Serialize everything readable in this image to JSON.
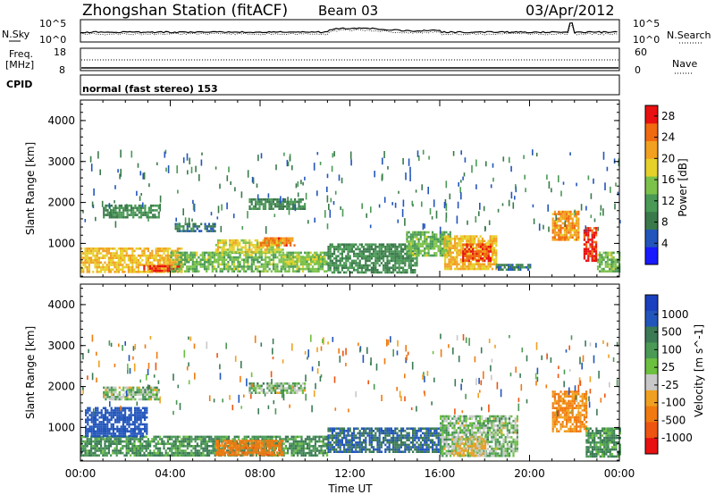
{
  "header": {
    "title": "Zhongshan Station (fitACF)",
    "beam": "Beam 03",
    "date": "03/Apr/2012"
  },
  "top_panel": {
    "nsky_label": "N.Sky",
    "nsearch_label": "N.Search",
    "nsky_ticks": [
      "10^5",
      "10^0"
    ],
    "nsearch_ticks": [
      "10^5",
      "10^0"
    ],
    "freq_label_1": "Freq.",
    "freq_label_2": "[MHz]",
    "freq_ticks": [
      "18",
      "8"
    ],
    "nave_label": "Nave",
    "nave_ticks": [
      "60",
      "0"
    ],
    "cpid_label": "CPID",
    "cpid_text": "normal (fast stereo) 153"
  },
  "colors": {
    "power_scale": [
      "#1a1aff",
      "#2255bb",
      "#3a7a4a",
      "#4a9a55",
      "#7cc24a",
      "#e6d02a",
      "#f2a020",
      "#f06a10",
      "#e81010"
    ],
    "velocity_scale": [
      "#1a3fbf",
      "#2255bb",
      "#3b7a55",
      "#4a9a55",
      "#6cc040",
      "#c8c8c8",
      "#f0a020",
      "#f07a10",
      "#ee5510",
      "#e81010"
    ]
  },
  "chart_data": [
    {
      "type": "heatmap",
      "name": "power",
      "xlabel": "Time UT",
      "ylabel": "Slant Range [km]",
      "colorbar_label": "Power [dB]",
      "x_ticks": [
        "00:00",
        "04:00",
        "08:00",
        "12:00",
        "16:00",
        "20:00",
        "00:00"
      ],
      "xlim_hours": [
        0,
        24
      ],
      "ylim_km": [
        180,
        4500
      ],
      "y_ticks": [
        1000,
        2000,
        3000,
        4000
      ],
      "colorbar_ticks": [
        4,
        8,
        12,
        16,
        20,
        24,
        28
      ],
      "colorbar_range": [
        0,
        30
      ],
      "echo_regions": [
        {
          "t_start": 0.0,
          "t_end": 4.5,
          "r_low": 300,
          "r_high": 900,
          "value": 20
        },
        {
          "t_start": 2.8,
          "t_end": 4.4,
          "r_low": 330,
          "r_high": 470,
          "value": 28
        },
        {
          "t_start": 4.0,
          "t_end": 11.0,
          "r_low": 300,
          "r_high": 800,
          "value": 14
        },
        {
          "t_start": 6.0,
          "t_end": 9.0,
          "r_low": 800,
          "r_high": 1100,
          "value": 18
        },
        {
          "t_start": 8.0,
          "t_end": 9.5,
          "r_low": 950,
          "r_high": 1150,
          "value": 24
        },
        {
          "t_start": 9.0,
          "t_end": 11.0,
          "r_low": 500,
          "r_high": 700,
          "value": 16
        },
        {
          "t_start": 1.0,
          "t_end": 3.5,
          "r_low": 1650,
          "r_high": 1950,
          "value": 10
        },
        {
          "t_start": 7.5,
          "t_end": 10.0,
          "r_low": 1850,
          "r_high": 2100,
          "value": 10
        },
        {
          "t_start": 4.2,
          "t_end": 6.0,
          "r_low": 1300,
          "r_high": 1500,
          "value": 8
        },
        {
          "t_start": 11.0,
          "t_end": 15.0,
          "r_low": 300,
          "r_high": 1000,
          "value": 10
        },
        {
          "t_start": 14.5,
          "t_end": 16.5,
          "r_low": 700,
          "r_high": 1300,
          "value": 14
        },
        {
          "t_start": 16.2,
          "t_end": 18.5,
          "r_low": 400,
          "r_high": 1200,
          "value": 20
        },
        {
          "t_start": 17.0,
          "t_end": 18.3,
          "r_low": 600,
          "r_high": 1000,
          "value": 26
        },
        {
          "t_start": 18.5,
          "t_end": 20.0,
          "r_low": 350,
          "r_high": 500,
          "value": 8
        },
        {
          "t_start": 21.0,
          "t_end": 22.2,
          "r_low": 1100,
          "r_high": 1800,
          "value": 22
        },
        {
          "t_start": 22.4,
          "t_end": 23.0,
          "r_low": 600,
          "r_high": 1400,
          "value": 28
        },
        {
          "t_start": 23.0,
          "t_end": 24.0,
          "r_low": 300,
          "r_high": 800,
          "value": 14
        }
      ]
    },
    {
      "type": "heatmap",
      "name": "velocity",
      "xlabel": "Time UT",
      "ylabel": "Slant Range [km]",
      "colorbar_label": "Velocity [m s^-1]",
      "x_ticks": [
        "00:00",
        "04:00",
        "08:00",
        "12:00",
        "16:00",
        "20:00",
        "00:00"
      ],
      "xlim_hours": [
        0,
        24
      ],
      "ylim_km": [
        180,
        4500
      ],
      "y_ticks": [
        1000,
        2000,
        3000,
        4000
      ],
      "colorbar_ticks": [
        "1000",
        "500",
        "100",
        "25",
        "-25",
        "-100",
        "-500",
        "-1000"
      ],
      "echo_regions": [
        {
          "t_start": 0.0,
          "t_end": 11.0,
          "r_low": 300,
          "r_high": 800,
          "value": 100
        },
        {
          "t_start": 1.0,
          "t_end": 3.5,
          "r_low": 1700,
          "r_high": 2000,
          "value": 0
        },
        {
          "t_start": 7.5,
          "t_end": 10.0,
          "r_low": 1850,
          "r_high": 2100,
          "value": 0
        },
        {
          "t_start": 0.2,
          "t_end": 3.0,
          "r_low": 800,
          "r_high": 1500,
          "value": 700
        },
        {
          "t_start": 6.0,
          "t_end": 9.0,
          "r_low": 350,
          "r_high": 700,
          "value": -400
        },
        {
          "t_start": 11.0,
          "t_end": 16.0,
          "r_low": 400,
          "r_high": 1000,
          "value": 500
        },
        {
          "t_start": 16.0,
          "t_end": 19.5,
          "r_low": 300,
          "r_high": 1300,
          "value": 0
        },
        {
          "t_start": 16.5,
          "t_end": 18.0,
          "r_low": 300,
          "r_high": 800,
          "value": -100
        },
        {
          "t_start": 21.0,
          "t_end": 22.5,
          "r_low": 900,
          "r_high": 1900,
          "value": -300
        },
        {
          "t_start": 22.5,
          "t_end": 24.0,
          "r_low": 300,
          "r_high": 1000,
          "value": 100
        }
      ]
    }
  ]
}
